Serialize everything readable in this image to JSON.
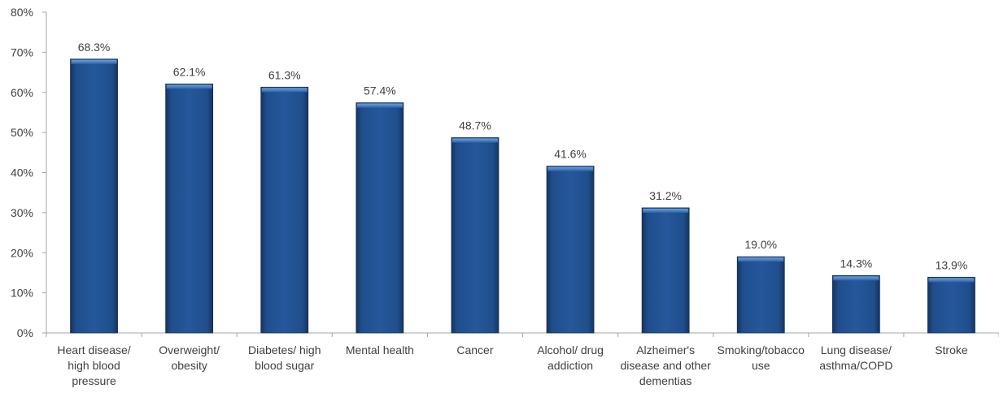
{
  "chart_data": {
    "type": "bar",
    "title": "",
    "xlabel": "",
    "ylabel": "",
    "ylim": [
      0,
      80
    ],
    "yticks": [
      "0%",
      "10%",
      "20%",
      "30%",
      "40%",
      "50%",
      "60%",
      "70%",
      "80%"
    ],
    "yunit": "%",
    "grid": false,
    "legend": "none",
    "bar_color": "#1F4E8C",
    "categories": [
      [
        "Heart disease/",
        "high blood",
        "pressure"
      ],
      [
        "Overweight/",
        "obesity"
      ],
      [
        "Diabetes/ high",
        "blood sugar"
      ],
      [
        "Mental health"
      ],
      [
        "Cancer"
      ],
      [
        "Alcohol/ drug",
        "addiction"
      ],
      [
        "Alzheimer's",
        "disease and other",
        "dementias"
      ],
      [
        "Smoking/tobacco",
        "use"
      ],
      [
        "Lung disease/",
        "asthma/COPD"
      ],
      [
        "Stroke"
      ]
    ],
    "values": [
      68.3,
      62.1,
      61.3,
      57.4,
      48.7,
      41.6,
      31.2,
      19.0,
      14.3,
      13.9
    ],
    "data_labels": [
      "68.3%",
      "62.1%",
      "61.3%",
      "57.4%",
      "48.7%",
      "41.6%",
      "31.2%",
      "19.0%",
      "14.3%",
      "13.9%"
    ]
  }
}
